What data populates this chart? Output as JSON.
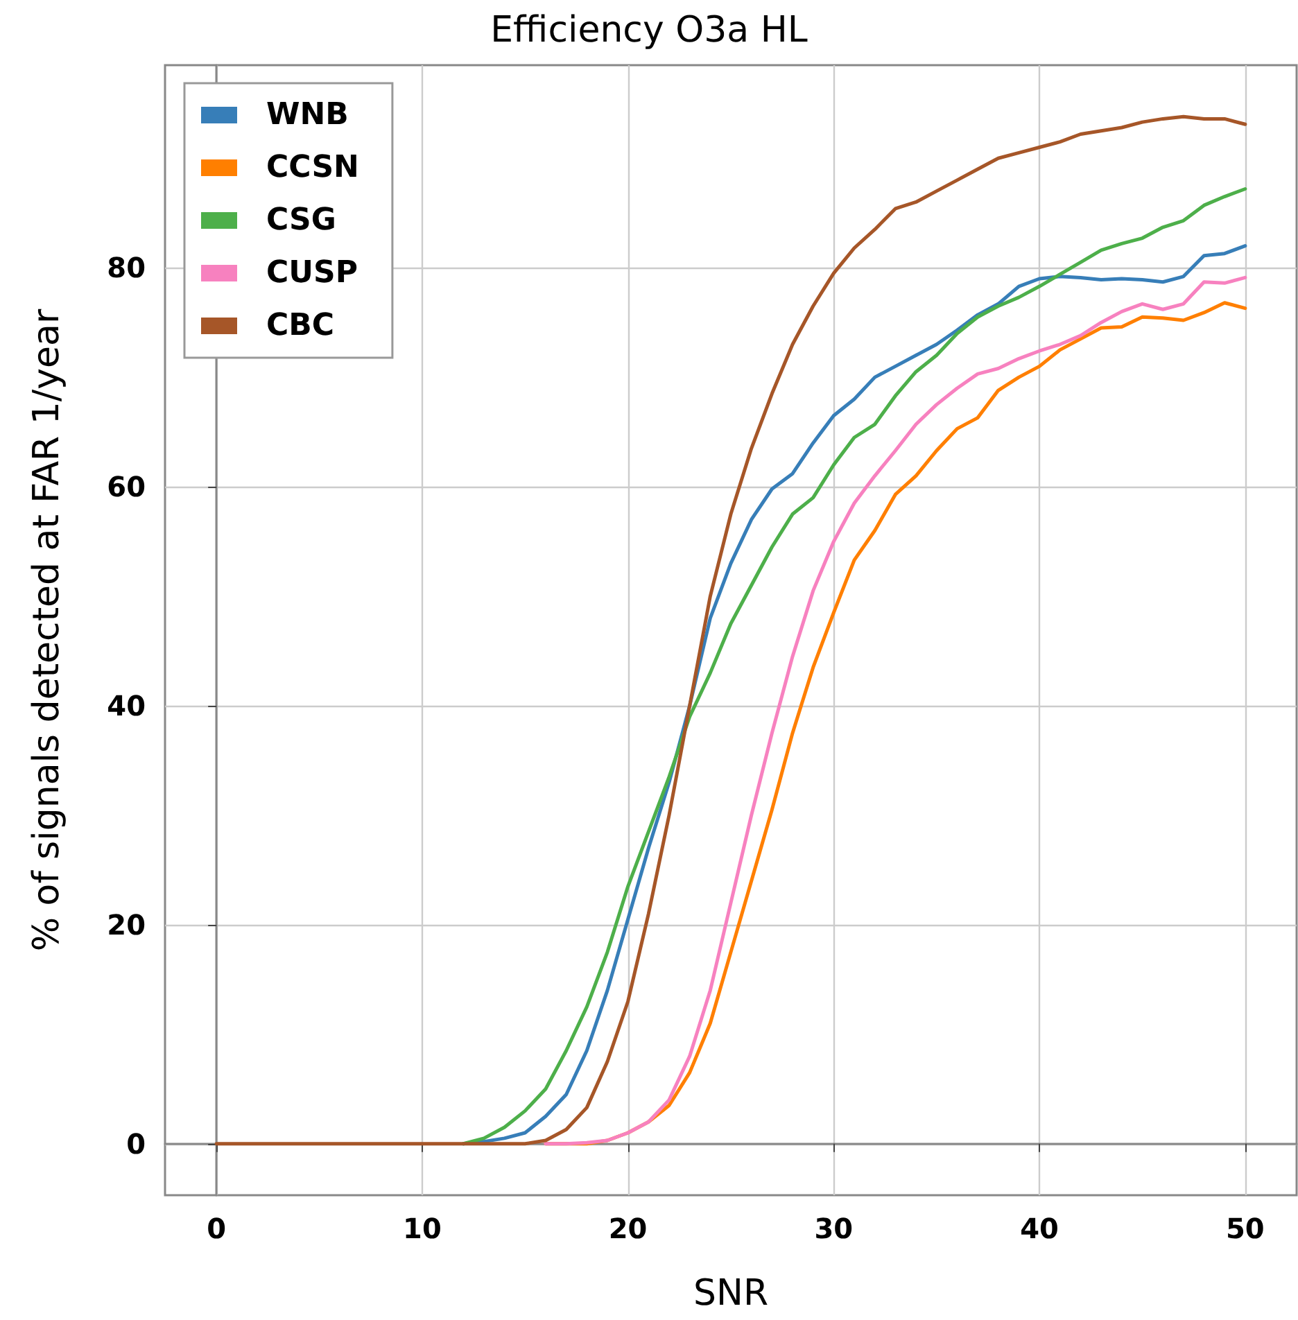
{
  "chart_data": {
    "type": "line",
    "title": "Efficiency O3a HL",
    "xlabel": "SNR",
    "ylabel": "% of signals detected at FAR 1/year",
    "x": [
      0,
      1,
      2,
      3,
      4,
      5,
      6,
      7,
      8,
      9,
      10,
      11,
      12,
      13,
      14,
      15,
      16,
      17,
      18,
      19,
      20,
      21,
      22,
      23,
      24,
      25,
      26,
      27,
      28,
      29,
      30,
      31,
      32,
      33,
      34,
      35,
      36,
      37,
      38,
      39,
      40,
      41,
      42,
      43,
      44,
      45,
      46,
      47,
      48,
      49,
      50
    ],
    "series": [
      {
        "name": "WNB",
        "color": "#377eb8",
        "values": [
          null,
          null,
          null,
          null,
          null,
          null,
          null,
          null,
          null,
          null,
          null,
          null,
          0,
          0.2,
          0.5,
          1,
          2.5,
          4.5,
          8.5,
          14,
          20.5,
          27,
          33,
          40,
          48,
          53,
          57,
          59.8,
          61.2,
          64,
          66.5,
          68,
          70,
          71,
          72,
          73,
          74.3,
          75.7,
          76.7,
          78.3,
          79,
          79.2,
          79.1,
          78.9,
          79,
          78.9,
          78.7,
          79.2,
          81.1,
          81.3,
          82
        ]
      },
      {
        "name": "CCSN",
        "color": "#ff7f00",
        "values": [
          null,
          null,
          null,
          null,
          null,
          null,
          null,
          null,
          null,
          null,
          null,
          null,
          null,
          null,
          null,
          null,
          0,
          0,
          0,
          0.3,
          1,
          2,
          3.5,
          6.5,
          11,
          17.5,
          24,
          30.5,
          37.5,
          43.5,
          48.5,
          53.3,
          56,
          59.3,
          61,
          63.3,
          65.3,
          66.3,
          68.8,
          70,
          71,
          72.5,
          73.5,
          74.5,
          74.6,
          75.5,
          75.4,
          75.2,
          75.9,
          76.8,
          76.3
        ]
      },
      {
        "name": "CSG",
        "color": "#4daf4a",
        "values": [
          null,
          null,
          null,
          null,
          null,
          null,
          null,
          null,
          null,
          null,
          null,
          null,
          0,
          0.5,
          1.5,
          3,
          5,
          8.5,
          12.5,
          17.5,
          23.5,
          28.5,
          33.5,
          39,
          43,
          47.5,
          51,
          54.5,
          57.5,
          59,
          62,
          64.5,
          65.7,
          68.3,
          70.5,
          72,
          74,
          75.5,
          76.5,
          77.3,
          78.3,
          79.4,
          80.5,
          81.6,
          82.2,
          82.7,
          83.7,
          84.3,
          85.7,
          86.5,
          87.2
        ]
      },
      {
        "name": "CUSP",
        "color": "#f781bf",
        "values": [
          null,
          null,
          null,
          null,
          null,
          null,
          null,
          null,
          null,
          null,
          null,
          null,
          null,
          null,
          null,
          null,
          0,
          0,
          0.1,
          0.3,
          1,
          2,
          4,
          8,
          14,
          22,
          30,
          37.5,
          44.5,
          50.5,
          55,
          58.5,
          61,
          63.3,
          65.7,
          67.5,
          69,
          70.3,
          70.8,
          71.7,
          72.4,
          73,
          73.8,
          75,
          76,
          76.7,
          76.2,
          76.7,
          78.7,
          78.6,
          79.1
        ]
      },
      {
        "name": "CBC",
        "color": "#a65628",
        "values": [
          0,
          0,
          0,
          0,
          0,
          0,
          0,
          0,
          0,
          0,
          0,
          0,
          0,
          0,
          0,
          0,
          0.3,
          1.3,
          3.3,
          7.5,
          13,
          21,
          30,
          40,
          50,
          57.5,
          63.5,
          68.5,
          73,
          76.5,
          79.5,
          81.8,
          83.5,
          85.4,
          86,
          87,
          88,
          89,
          90,
          90.5,
          91,
          91.5,
          92.2,
          92.5,
          92.8,
          93.3,
          93.6,
          93.8,
          93.6,
          93.6,
          93.1
        ]
      }
    ],
    "xlim": [
      -2.5,
      52.5
    ],
    "xticks": [
      0,
      10,
      20,
      30,
      40,
      50
    ],
    "ylim": [
      -4.7,
      98.5
    ],
    "yticks": [
      0,
      20,
      40,
      60,
      80
    ],
    "grid": true,
    "legend": "top left",
    "marker": "none",
    "line_style": "solid"
  }
}
